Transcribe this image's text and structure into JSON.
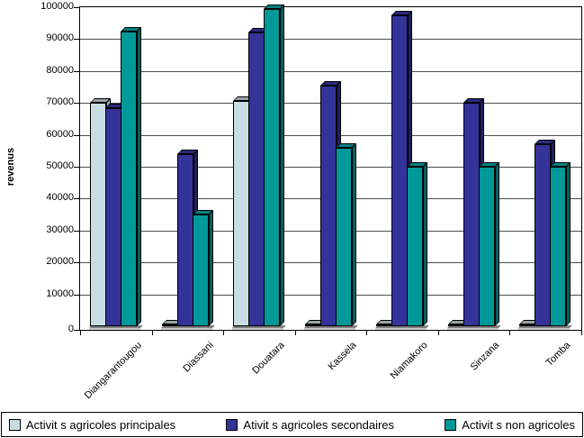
{
  "y_axis": {
    "title": "revenus",
    "tick_labels": [
      "0",
      "10000",
      "20000",
      "30000",
      "40000",
      "50000",
      "60000",
      "70000",
      "80000",
      "90000",
      "100000"
    ]
  },
  "chart_data": {
    "type": "bar",
    "title": "",
    "xlabel": "",
    "ylabel": "revenus",
    "ylim": [
      0,
      100000
    ],
    "ytick_step": 10000,
    "grid": true,
    "legend_position": "bottom",
    "style": "3d-clustered-columns",
    "categories": [
      "Diangarantougou",
      "Diassani",
      "Douatara",
      "Kassela",
      "Niamakoro",
      "Sinzana",
      "Tomba"
    ],
    "series": [
      {
        "name": "Activit s agricoles principales",
        "values": [
          70000,
          0,
          70500,
          0,
          0,
          0,
          0
        ],
        "color": "#c6dee3",
        "top_color": "#9aa3a4",
        "side_color": "#8fb0b6"
      },
      {
        "name": "Ativit s agricoles secondaires",
        "values": [
          68500,
          54000,
          92000,
          75500,
          97500,
          70000,
          57000
        ],
        "color": "#333399",
        "top_color": "#2b2b80",
        "side_color": "#1e1e5f"
      },
      {
        "name": "Activit s non agricoles",
        "values": [
          92500,
          35000,
          99500,
          56000,
          50000,
          50000,
          50000
        ],
        "color": "#009999",
        "top_color": "#008080",
        "side_color": "#006060"
      }
    ],
    "floor_color": "#808080",
    "floor_front_color": "#c9c9c9"
  }
}
